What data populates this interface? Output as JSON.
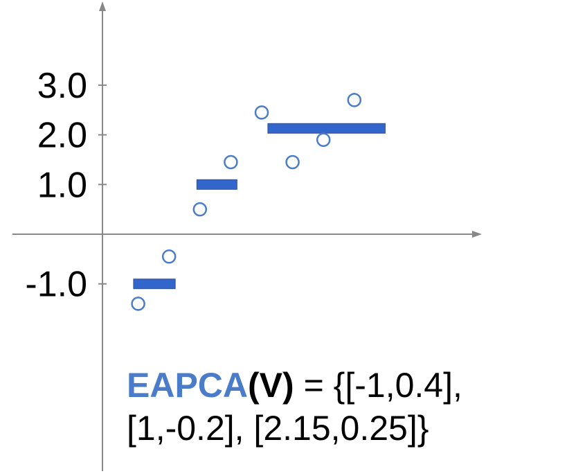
{
  "chart_data": {
    "type": "scatter",
    "y_ticks": [
      {
        "value": 3,
        "label": "3.0"
      },
      {
        "value": 2,
        "label": "2.0"
      },
      {
        "value": 1,
        "label": "1.0"
      },
      {
        "value": -1,
        "label": "-1.0"
      }
    ],
    "points": [
      {
        "x": 1,
        "y": -1.4
      },
      {
        "x": 2,
        "y": -0.45
      },
      {
        "x": 3,
        "y": 0.5
      },
      {
        "x": 4,
        "y": 1.45
      },
      {
        "x": 5,
        "y": 2.45
      },
      {
        "x": 6,
        "y": 1.45
      },
      {
        "x": 7,
        "y": 1.9
      },
      {
        "x": 8,
        "y": 2.7
      }
    ],
    "segments": [
      {
        "x_start": 0.85,
        "x_end": 2.2,
        "y": -1.0
      },
      {
        "x_start": 2.9,
        "x_end": 4.2,
        "y": 1.0
      },
      {
        "x_start": 5.2,
        "x_end": 9.0,
        "y": 2.13
      }
    ],
    "colors": {
      "series": "#4a7cc9",
      "segment": "#3366cc",
      "axis": "#888888"
    }
  },
  "formula": {
    "name": "EAPCA",
    "arg": "(V)",
    "line1_rest": " = {[-1,0.4],",
    "line2": "[1,-0.2], [2.15,0.25]}"
  }
}
